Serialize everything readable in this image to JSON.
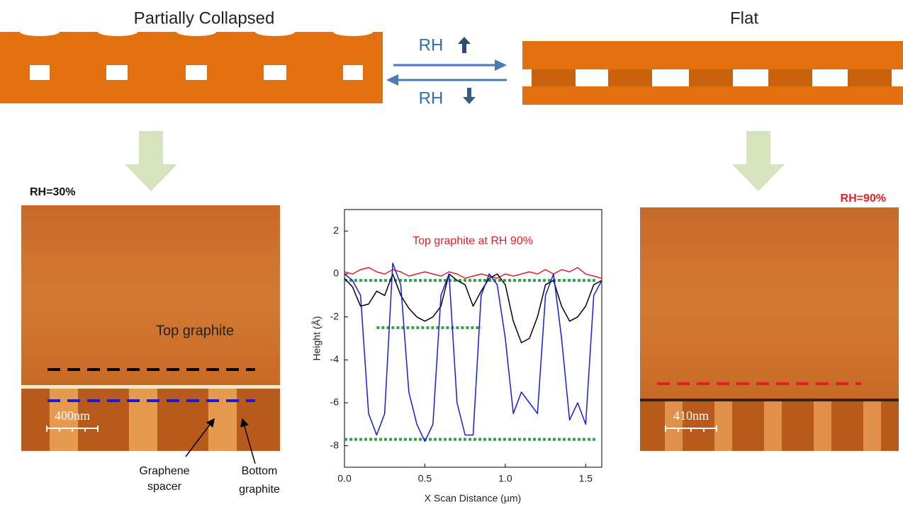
{
  "labels": {
    "left_title": "Partially Collapsed",
    "right_title": "Flat",
    "rh_up": "RH",
    "rh_down": "RH",
    "left_rh": "RH=30%",
    "right_rh": "RH=90%",
    "top_graphite": "Top graphite",
    "left_scale": "400nm",
    "right_scale": "410nm",
    "graphene_spacer": [
      "Graphene",
      "spacer"
    ],
    "bottom_graphite": [
      "Bottom",
      "graphite"
    ]
  },
  "chart_data": {
    "type": "line",
    "x_label": "X Scan Distance (µm)",
    "y_label": "Height (Å)",
    "annotation": "Top graphite at RH 90%",
    "annotation_color": "#e0202a",
    "x": [
      0,
      0.05,
      0.1,
      0.15,
      0.2,
      0.25,
      0.3,
      0.35,
      0.4,
      0.45,
      0.5,
      0.55,
      0.6,
      0.65,
      0.7,
      0.75,
      0.8,
      0.85,
      0.9,
      0.95,
      1.0,
      1.05,
      1.1,
      1.15,
      1.2,
      1.25,
      1.3,
      1.35,
      1.4,
      1.45,
      1.5,
      1.55,
      1.6
    ],
    "series": [
      {
        "color": "#e0202a",
        "values": [
          0.1,
          0.0,
          0.2,
          0.3,
          0.1,
          0.0,
          0.2,
          0.1,
          -0.1,
          0.0,
          0.1,
          0.0,
          -0.1,
          0.1,
          0.0,
          -0.2,
          -0.1,
          0.0,
          -0.1,
          -0.2,
          0.0,
          -0.1,
          0.0,
          0.1,
          0.0,
          0.2,
          0.0,
          0.2,
          0.1,
          0.3,
          0.0,
          -0.1,
          -0.2
        ]
      },
      {
        "color": "#000000",
        "values": [
          -0.2,
          -0.6,
          -1.5,
          -1.4,
          -0.8,
          -1.0,
          0.0,
          -1.0,
          -1.6,
          -2.0,
          -2.2,
          -2.0,
          -1.5,
          0.0,
          -0.3,
          -0.5,
          -1.5,
          -0.8,
          -0.2,
          0.0,
          -0.5,
          -2.2,
          -3.2,
          -3.0,
          -2.0,
          -0.5,
          -0.3,
          -1.5,
          -2.2,
          -2.0,
          -1.5,
          -0.5,
          -0.3
        ]
      },
      {
        "color": "#1a1ad8",
        "values": [
          0.0,
          -0.3,
          -1.0,
          -6.5,
          -7.5,
          -6.5,
          0.5,
          -0.5,
          -5.5,
          -7.0,
          -7.8,
          -7.0,
          -1.0,
          0.0,
          -6.0,
          -7.5,
          -7.5,
          -1.0,
          0.0,
          -0.5,
          -3.0,
          -6.5,
          -5.5,
          -6.0,
          -6.5,
          -1.0,
          0.0,
          -3.0,
          -6.8,
          -6.0,
          -7.0,
          -1.0,
          -0.3
        ]
      }
    ],
    "reference_lines": [
      {
        "color": "#2ca44a",
        "y": -0.3,
        "x": [
          0,
          1.56
        ]
      },
      {
        "color": "#2ca44a",
        "y": -2.5,
        "x": [
          0.2,
          0.85
        ]
      },
      {
        "color": "#2ca44a",
        "y": -7.7,
        "x": [
          0,
          1.56
        ]
      }
    ],
    "xlim": [
      0,
      1.6
    ],
    "ylim": [
      -9,
      3
    ],
    "xticks": [
      {
        "value": 0,
        "label": "0.0"
      },
      0.5,
      {
        "value": 1,
        "label": "1.0"
      },
      1.5
    ],
    "yticks": [
      2,
      0,
      -2,
      -4,
      -6,
      -8
    ]
  }
}
